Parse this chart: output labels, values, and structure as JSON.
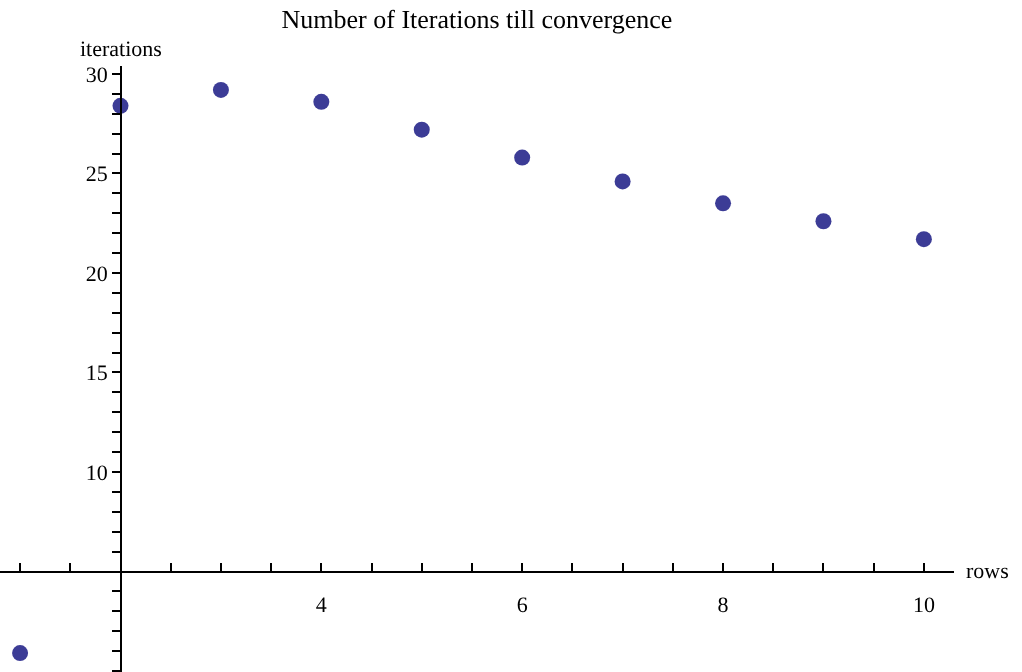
{
  "chart_data": {
    "type": "scatter",
    "title": "Number of Iterations till convergence",
    "xlabel": "rows",
    "ylabel": "iterations",
    "x": [
      1,
      2,
      3,
      4,
      5,
      6,
      7,
      8,
      9,
      10
    ],
    "series": [
      {
        "color": "#3c3c96",
        "values": [
          0.9,
          28.4,
          29.2,
          28.6,
          27.2,
          25.8,
          24.6,
          23.5,
          22.6,
          21.7
        ]
      }
    ],
    "xlim": [
      0.8,
      10.3
    ],
    "ylim": [
      -0.05,
      30.4
    ],
    "xticks": [
      4,
      6,
      8,
      10
    ],
    "yticks": [
      10,
      15,
      20,
      25,
      30
    ],
    "marker": "circle"
  }
}
